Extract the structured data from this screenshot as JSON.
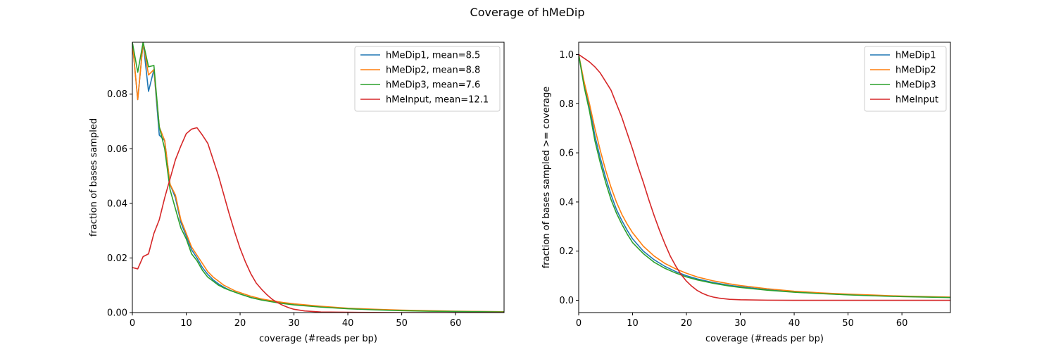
{
  "figure": {
    "title": "Coverage of hMeDip",
    "series_colors": {
      "hMeDip1": "#1f77b4",
      "hMeDip2": "#ff7f0e",
      "hMeDip3": "#2ca02c",
      "hMeInput": "#d62728"
    }
  },
  "chart_data": [
    {
      "type": "line",
      "xlabel": "coverage (#reads per bp)",
      "ylabel": "fraction of bases sampled",
      "xlim": [
        0,
        69
      ],
      "ylim": [
        0,
        0.099
      ],
      "xticks": [
        0,
        10,
        20,
        30,
        40,
        50,
        60
      ],
      "yticks": [
        0.0,
        0.02,
        0.04,
        0.06,
        0.08
      ],
      "ytick_labels": [
        "0.00",
        "0.02",
        "0.04",
        "0.06",
        "0.08"
      ],
      "grid": false,
      "legend_position": "top-right",
      "series": [
        {
          "name": "hMeDip1, mean=8.5",
          "color": "#1f77b4",
          "points": [
            [
              0,
              0.099
            ],
            [
              1,
              0.078
            ],
            [
              2,
              0.099
            ],
            [
              3,
              0.081
            ],
            [
              4,
              0.089
            ],
            [
              5,
              0.065
            ],
            [
              6,
              0.063
            ],
            [
              7,
              0.047
            ],
            [
              8,
              0.042
            ],
            [
              9,
              0.033
            ],
            [
              10,
              0.028
            ],
            [
              11,
              0.023
            ],
            [
              12,
              0.02
            ],
            [
              13,
              0.0165
            ],
            [
              14,
              0.014
            ],
            [
              15,
              0.012
            ],
            [
              16,
              0.0105
            ],
            [
              17,
              0.0093
            ],
            [
              18,
              0.0083
            ],
            [
              19,
              0.0075
            ],
            [
              20,
              0.0068
            ],
            [
              22,
              0.0055
            ],
            [
              24,
              0.0047
            ],
            [
              26,
              0.004
            ],
            [
              28,
              0.0035
            ],
            [
              30,
              0.003
            ],
            [
              35,
              0.0021
            ],
            [
              40,
              0.0015
            ],
            [
              45,
              0.0011
            ],
            [
              50,
              0.0008
            ],
            [
              55,
              0.0006
            ],
            [
              60,
              0.0004
            ],
            [
              69,
              0.0003
            ]
          ]
        },
        {
          "name": "hMeDip2, mean=8.8",
          "color": "#ff7f0e",
          "points": [
            [
              0,
              0.099
            ],
            [
              1,
              0.078
            ],
            [
              2,
              0.099
            ],
            [
              3,
              0.087
            ],
            [
              4,
              0.089
            ],
            [
              5,
              0.068
            ],
            [
              6,
              0.063
            ],
            [
              7,
              0.047
            ],
            [
              8,
              0.043
            ],
            [
              9,
              0.034
            ],
            [
              10,
              0.029
            ],
            [
              11,
              0.024
            ],
            [
              12,
              0.021
            ],
            [
              13,
              0.018
            ],
            [
              14,
              0.015
            ],
            [
              15,
              0.013
            ],
            [
              16,
              0.0115
            ],
            [
              17,
              0.01
            ],
            [
              18,
              0.009
            ],
            [
              19,
              0.008
            ],
            [
              20,
              0.0073
            ],
            [
              22,
              0.006
            ],
            [
              24,
              0.005
            ],
            [
              26,
              0.0043
            ],
            [
              28,
              0.0037
            ],
            [
              30,
              0.0032
            ],
            [
              35,
              0.0023
            ],
            [
              40,
              0.0016
            ],
            [
              45,
              0.0012
            ],
            [
              50,
              0.0009
            ],
            [
              55,
              0.0007
            ],
            [
              60,
              0.0005
            ],
            [
              69,
              0.0003
            ]
          ]
        },
        {
          "name": "hMeDip3, mean=7.6",
          "color": "#2ca02c",
          "points": [
            [
              0,
              0.099
            ],
            [
              1,
              0.088
            ],
            [
              2,
              0.099
            ],
            [
              3,
              0.09
            ],
            [
              4,
              0.0905
            ],
            [
              5,
              0.068
            ],
            [
              6,
              0.06
            ],
            [
              7,
              0.045
            ],
            [
              8,
              0.038
            ],
            [
              9,
              0.031
            ],
            [
              10,
              0.027
            ],
            [
              11,
              0.0215
            ],
            [
              12,
              0.019
            ],
            [
              13,
              0.0155
            ],
            [
              14,
              0.013
            ],
            [
              15,
              0.0115
            ],
            [
              16,
              0.01
            ],
            [
              17,
              0.009
            ],
            [
              18,
              0.0082
            ],
            [
              19,
              0.0075
            ],
            [
              20,
              0.0068
            ],
            [
              22,
              0.0055
            ],
            [
              24,
              0.0046
            ],
            [
              26,
              0.0039
            ],
            [
              28,
              0.0033
            ],
            [
              30,
              0.0028
            ],
            [
              35,
              0.002
            ],
            [
              40,
              0.0014
            ],
            [
              45,
              0.001
            ],
            [
              50,
              0.0007
            ],
            [
              55,
              0.0005
            ],
            [
              60,
              0.0004
            ],
            [
              69,
              0.0002
            ]
          ]
        },
        {
          "name": "hMeInput, mean=12.1",
          "color": "#d62728",
          "points": [
            [
              0,
              0.0165
            ],
            [
              1,
              0.016
            ],
            [
              2,
              0.0205
            ],
            [
              3,
              0.0215
            ],
            [
              4,
              0.029
            ],
            [
              5,
              0.034
            ],
            [
              6,
              0.042
            ],
            [
              7,
              0.049
            ],
            [
              8,
              0.056
            ],
            [
              9,
              0.061
            ],
            [
              10,
              0.0655
            ],
            [
              11,
              0.0672
            ],
            [
              12,
              0.0677
            ],
            [
              13,
              0.065
            ],
            [
              14,
              0.062
            ],
            [
              15,
              0.056
            ],
            [
              16,
              0.05
            ],
            [
              17,
              0.043
            ],
            [
              18,
              0.036
            ],
            [
              19,
              0.0295
            ],
            [
              20,
              0.0235
            ],
            [
              21,
              0.0185
            ],
            [
              22,
              0.0142
            ],
            [
              23,
              0.0108
            ],
            [
              24,
              0.0085
            ],
            [
              25,
              0.0065
            ],
            [
              26,
              0.0048
            ],
            [
              27,
              0.0036
            ],
            [
              28,
              0.0026
            ],
            [
              29,
              0.0018
            ],
            [
              30,
              0.0012
            ],
            [
              32,
              0.0006
            ],
            [
              35,
              0.0002
            ],
            [
              40,
              0.0001
            ],
            [
              50,
              0.0
            ],
            [
              69,
              0.0
            ]
          ]
        }
      ]
    },
    {
      "type": "line",
      "xlabel": "coverage (#reads per bp)",
      "ylabel": "fraction of bases sampled >= coverage",
      "xlim": [
        0,
        69
      ],
      "ylim": [
        -0.05,
        1.05
      ],
      "xticks": [
        0,
        10,
        20,
        30,
        40,
        50,
        60
      ],
      "yticks": [
        0.0,
        0.2,
        0.4,
        0.6,
        0.8,
        1.0
      ],
      "ytick_labels": [
        "0.0",
        "0.2",
        "0.4",
        "0.6",
        "0.8",
        "1.0"
      ],
      "grid": false,
      "legend_position": "top-right",
      "series": [
        {
          "name": "hMeDip1",
          "color": "#1f77b4",
          "points": [
            [
              0,
              1.0
            ],
            [
              1,
              0.88
            ],
            [
              2,
              0.79
            ],
            [
              3,
              0.67
            ],
            [
              4,
              0.58
            ],
            [
              5,
              0.5
            ],
            [
              6,
              0.43
            ],
            [
              7,
              0.37
            ],
            [
              8,
              0.325
            ],
            [
              9,
              0.285
            ],
            [
              10,
              0.25
            ],
            [
              12,
              0.2
            ],
            [
              14,
              0.165
            ],
            [
              16,
              0.138
            ],
            [
              18,
              0.117
            ],
            [
              20,
              0.1
            ],
            [
              22,
              0.087
            ],
            [
              25,
              0.072
            ],
            [
              28,
              0.061
            ],
            [
              30,
              0.055
            ],
            [
              35,
              0.043
            ],
            [
              40,
              0.034
            ],
            [
              45,
              0.028
            ],
            [
              50,
              0.023
            ],
            [
              55,
              0.019
            ],
            [
              60,
              0.016
            ],
            [
              69,
              0.012
            ]
          ]
        },
        {
          "name": "hMeDip2",
          "color": "#ff7f0e",
          "points": [
            [
              0,
              1.0
            ],
            [
              1,
              0.89
            ],
            [
              2,
              0.8
            ],
            [
              3,
              0.7
            ],
            [
              4,
              0.61
            ],
            [
              5,
              0.53
            ],
            [
              6,
              0.46
            ],
            [
              7,
              0.4
            ],
            [
              8,
              0.35
            ],
            [
              9,
              0.31
            ],
            [
              10,
              0.275
            ],
            [
              12,
              0.22
            ],
            [
              14,
              0.18
            ],
            [
              16,
              0.15
            ],
            [
              18,
              0.128
            ],
            [
              20,
              0.11
            ],
            [
              22,
              0.095
            ],
            [
              25,
              0.079
            ],
            [
              28,
              0.067
            ],
            [
              30,
              0.06
            ],
            [
              35,
              0.047
            ],
            [
              40,
              0.037
            ],
            [
              45,
              0.03
            ],
            [
              50,
              0.025
            ],
            [
              55,
              0.021
            ],
            [
              60,
              0.017
            ],
            [
              69,
              0.013
            ]
          ]
        },
        {
          "name": "hMeDip3",
          "color": "#2ca02c",
          "points": [
            [
              0,
              1.0
            ],
            [
              1,
              0.87
            ],
            [
              2,
              0.77
            ],
            [
              3,
              0.65
            ],
            [
              4,
              0.56
            ],
            [
              5,
              0.48
            ],
            [
              6,
              0.41
            ],
            [
              7,
              0.355
            ],
            [
              8,
              0.31
            ],
            [
              9,
              0.27
            ],
            [
              10,
              0.235
            ],
            [
              12,
              0.19
            ],
            [
              14,
              0.155
            ],
            [
              16,
              0.13
            ],
            [
              18,
              0.111
            ],
            [
              20,
              0.095
            ],
            [
              22,
              0.083
            ],
            [
              25,
              0.069
            ],
            [
              28,
              0.058
            ],
            [
              30,
              0.052
            ],
            [
              35,
              0.041
            ],
            [
              40,
              0.033
            ],
            [
              45,
              0.027
            ],
            [
              50,
              0.022
            ],
            [
              55,
              0.018
            ],
            [
              60,
              0.015
            ],
            [
              69,
              0.011
            ]
          ]
        },
        {
          "name": "hMeInput",
          "color": "#d62728",
          "points": [
            [
              0,
              1.0
            ],
            [
              1,
              0.985
            ],
            [
              2,
              0.97
            ],
            [
              3,
              0.95
            ],
            [
              4,
              0.925
            ],
            [
              5,
              0.89
            ],
            [
              6,
              0.855
            ],
            [
              7,
              0.8
            ],
            [
              8,
              0.745
            ],
            [
              9,
              0.68
            ],
            [
              10,
              0.615
            ],
            [
              11,
              0.545
            ],
            [
              12,
              0.48
            ],
            [
              13,
              0.41
            ],
            [
              14,
              0.345
            ],
            [
              15,
              0.285
            ],
            [
              16,
              0.23
            ],
            [
              17,
              0.18
            ],
            [
              18,
              0.14
            ],
            [
              19,
              0.105
            ],
            [
              20,
              0.078
            ],
            [
              21,
              0.057
            ],
            [
              22,
              0.04
            ],
            [
              23,
              0.028
            ],
            [
              24,
              0.019
            ],
            [
              25,
              0.013
            ],
            [
              26,
              0.009
            ],
            [
              28,
              0.004
            ],
            [
              30,
              0.002
            ],
            [
              35,
              0.0005
            ],
            [
              40,
              0.0
            ],
            [
              69,
              0.0
            ]
          ]
        }
      ]
    }
  ]
}
